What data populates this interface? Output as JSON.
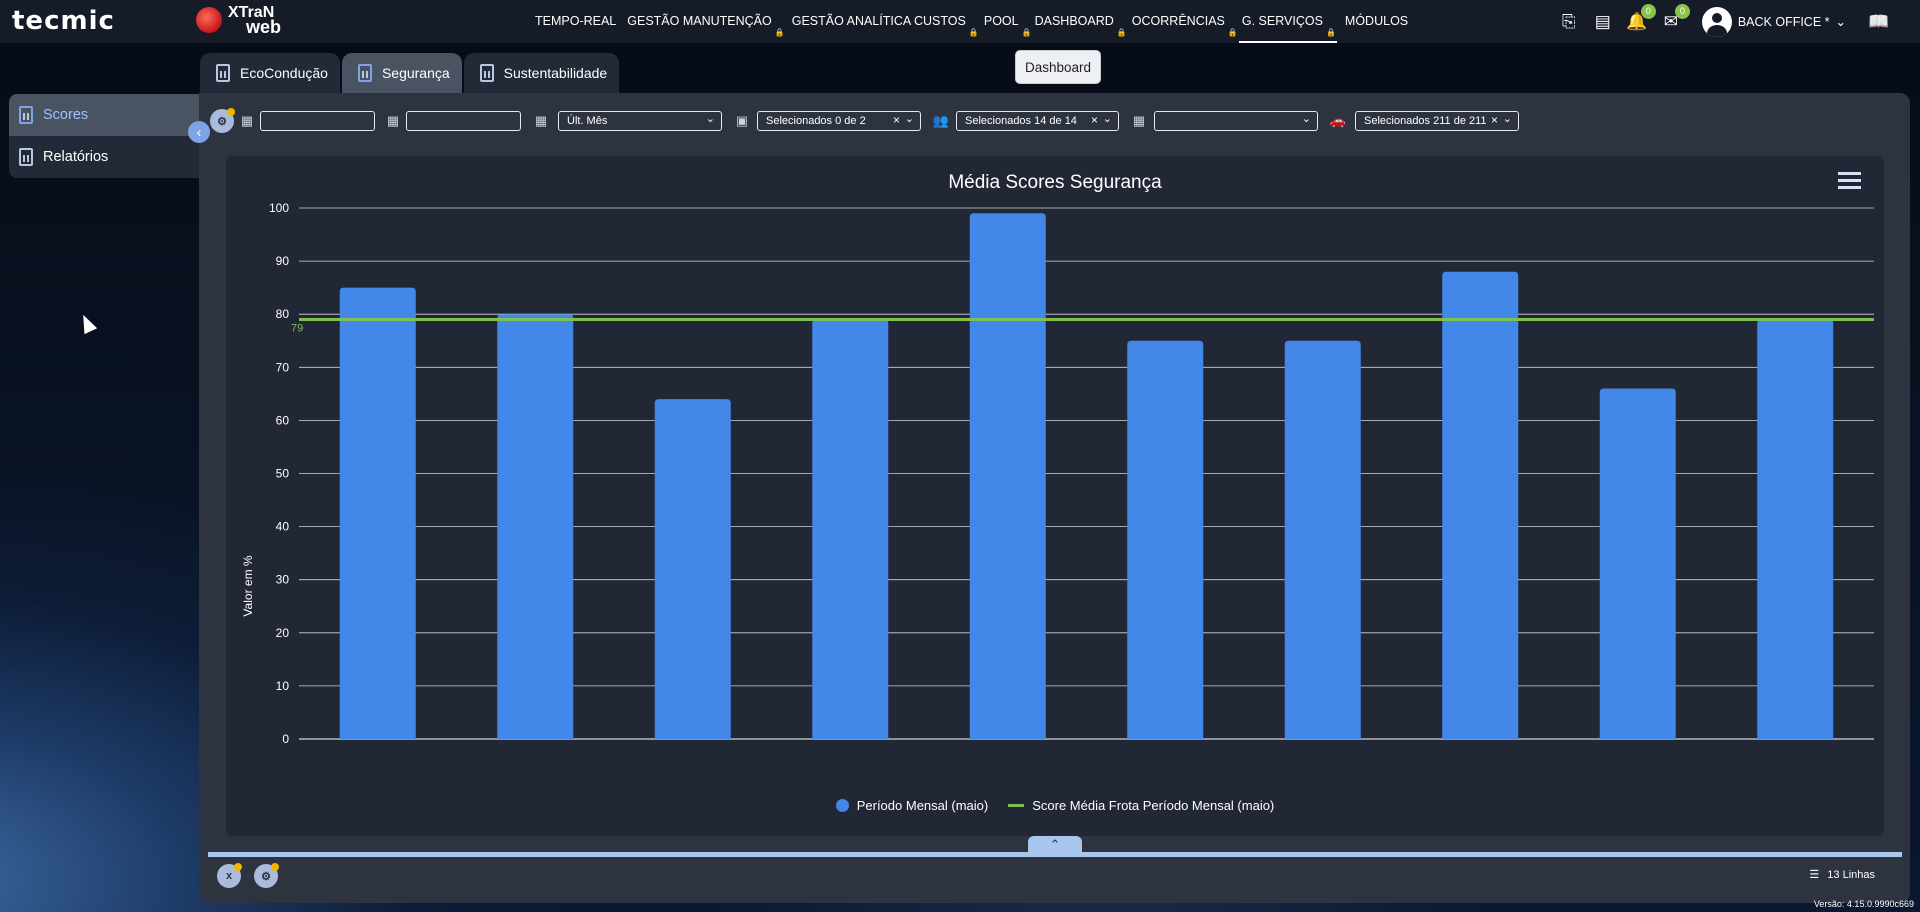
{
  "brand": {
    "tecmic": "tecmic",
    "xtran_line1": "XTraN",
    "xtran_line2": "web"
  },
  "nav": {
    "items": [
      {
        "label": "TEMPO-REAL",
        "locked": false
      },
      {
        "label": "GESTÃO MANUTENÇÃO",
        "locked": true
      },
      {
        "label": "GESTÃO ANALÍTICA CUSTOS",
        "locked": true
      },
      {
        "label": "POOL",
        "locked": true
      },
      {
        "label": "DASHBOARD",
        "locked": true
      },
      {
        "label": "OCORRÊNCIAS",
        "locked": true
      },
      {
        "label": "G. SERVIÇOS",
        "locked": true,
        "active": true
      },
      {
        "label": "MÓDULOS",
        "locked": false
      }
    ],
    "notifications_badge": "0",
    "messages_badge": "0",
    "user_label": "BACK OFFICE *"
  },
  "tooltip": {
    "text": "Dashboard"
  },
  "tabs": [
    {
      "label": "EcoCondução",
      "active": false
    },
    {
      "label": "Segurança",
      "active": true
    },
    {
      "label": "Sustentabilidade",
      "active": false
    }
  ],
  "sidebar": {
    "items": [
      {
        "label": "Scores",
        "active": true
      },
      {
        "label": "Relatórios",
        "active": false
      }
    ]
  },
  "filters": {
    "date_from": "",
    "date_to": "",
    "period": "Últ. Mês",
    "companies": "Selecionados 0 de 2",
    "groups": "Selecionados 14 de 14",
    "category": "",
    "vehicles": "Selecionados 211 de 211"
  },
  "chart_data": {
    "type": "bar",
    "title": "Média Scores Segurança",
    "ylabel": "Valor em %",
    "xlabel": "",
    "ylim": [
      0,
      100
    ],
    "yticks": [
      0,
      10,
      20,
      30,
      40,
      50,
      60,
      70,
      80,
      90,
      100
    ],
    "grid": true,
    "legend_position": "bottom",
    "series": [
      {
        "name": "Período Mensal (maio)",
        "color": "#4387e8",
        "values": [
          85,
          80,
          64,
          79,
          99,
          75,
          75,
          88,
          66,
          79
        ]
      }
    ],
    "reference_line": {
      "name": "Score Média Frota Período Mensal (maio)",
      "value": 79,
      "label": "79",
      "color": "#7cc04f"
    }
  },
  "footer": {
    "lines_label": "13 Linhas",
    "version": "Versão: 4.15.0.9990c669"
  },
  "colors": {
    "accent": "#7ea3e6",
    "bar": "#4387e8",
    "reference": "#7cc04f"
  }
}
